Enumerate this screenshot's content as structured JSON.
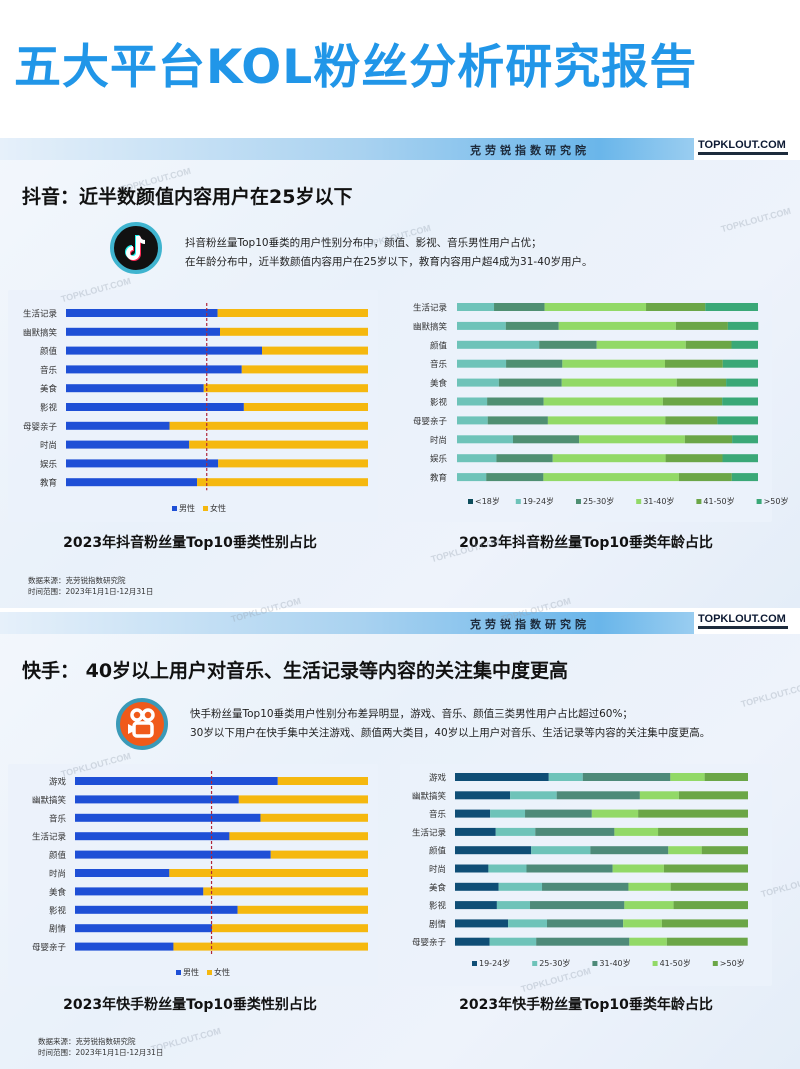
{
  "page_title": "五大平台KOL粉丝分析研究报告",
  "brand": {
    "org_name": "克劳锐指数研究院",
    "logo_text": "TOPKLOUT.COM",
    "watermark": "TOPKLOUT.COM"
  },
  "colors": {
    "title": "#2196e8",
    "male": "#1e4fd6",
    "female": "#f5b80f"
  },
  "sections": [
    {
      "heading": "抖音：近半数颜值内容用户在25岁以下",
      "icon": "tiktok-logo-icon",
      "desc_lines": [
        "抖音粉丝量Top10垂类的用户性别分布中，颜值、影视、音乐男性用户占优；",
        "在年龄分布中，近半数颜值内容用户在25岁以下，教育内容用户超4成为31-40岁用户。"
      ],
      "source": "数据来源：克劳锐指数研究院",
      "time_range": "时间范围：2023年1月1日-12月31日"
    },
    {
      "heading": "快手：  40岁以上用户对音乐、生活记录等内容的关注集中度更高",
      "icon": "kuaishou-logo-icon",
      "desc_lines": [
        "快手粉丝量Top10垂类用户性别分布差异明显，游戏、音乐、颜值三类男性用户占比超过60%；",
        "30岁以下用户在快手集中关注游戏、颜值两大类目，40岁以上用户对音乐、生活记录等内容的关注集中度更高。"
      ],
      "source": "数据来源：克劳锐指数研究院",
      "time_range": "时间范围：2023年1月1日-12月31日"
    }
  ],
  "chart_data": [
    {
      "type": "bar",
      "stacked": true,
      "orientation": "horizontal",
      "percent": true,
      "title": "2023年抖音粉丝量Top10垂类性别占比",
      "categories": [
        "生活记录",
        "幽默搞笑",
        "颜值",
        "音乐",
        "美食",
        "影视",
        "母婴亲子",
        "时尚",
        "娱乐",
        "教育"
      ],
      "series": [
        {
          "name": "男性",
          "color": "#1e4fd6",
          "values": [
            50.2,
            51.0,
            64.9,
            58.2,
            45.6,
            58.9,
            34.3,
            40.8,
            50.4,
            43.4
          ]
        },
        {
          "name": "女性",
          "color": "#f5b80f",
          "values": [
            49.8,
            49.0,
            35.1,
            41.8,
            54.4,
            41.1,
            65.7,
            59.2,
            49.6,
            56.6
          ]
        }
      ],
      "reference_line": 46.6,
      "xlim": [
        0,
        100
      ],
      "legend": "bottom",
      "grid": false
    },
    {
      "type": "bar",
      "stacked": true,
      "orientation": "horizontal",
      "percent": true,
      "title": "2023年抖音粉丝量Top10垂类年龄占比",
      "categories": [
        "生活记录",
        "幽默搞笑",
        "颜值",
        "音乐",
        "美食",
        "影视",
        "母婴亲子",
        "时尚",
        "娱乐",
        "教育"
      ],
      "series": [
        {
          "name": "<18岁",
          "color": "#0e4d5c",
          "values": [
            0,
            0,
            0,
            0,
            0,
            0,
            0,
            0,
            0,
            0
          ]
        },
        {
          "name": "19-24岁",
          "color": "#6ec3b9",
          "values": [
            12.3,
            16.2,
            27.3,
            16.3,
            13.9,
            10.0,
            10.2,
            18.6,
            13.1,
            9.7
          ]
        },
        {
          "name": "25-30岁",
          "color": "#4f8f72",
          "values": [
            16.8,
            17.6,
            19.1,
            18.7,
            20.9,
            18.8,
            20.0,
            22.0,
            18.7,
            19.0
          ]
        },
        {
          "name": "31-40岁",
          "color": "#92d967",
          "values": [
            33.7,
            38.9,
            29.6,
            34.1,
            38.2,
            39.6,
            39.0,
            35.1,
            37.5,
            45.0
          ]
        },
        {
          "name": "41-50岁",
          "color": "#6ba647",
          "values": [
            19.7,
            17.3,
            15.2,
            19.2,
            16.4,
            19.7,
            17.3,
            15.7,
            18.9,
            17.6
          ]
        },
        {
          "name": ">50岁",
          "color": "#3aa877",
          "values": [
            17.5,
            10.1,
            8.8,
            11.7,
            10.6,
            11.9,
            13.5,
            8.6,
            11.8,
            8.7
          ]
        }
      ],
      "xlim": [
        0,
        100
      ],
      "legend": "bottom",
      "grid": false
    },
    {
      "type": "bar",
      "stacked": true,
      "orientation": "horizontal",
      "percent": true,
      "title": "2023年快手粉丝量Top10垂类性别占比",
      "categories": [
        "游戏",
        "幽默搞笑",
        "音乐",
        "生活记录",
        "颜值",
        "时尚",
        "美食",
        "影视",
        "剧情",
        "母婴亲子"
      ],
      "series": [
        {
          "name": "男性",
          "color": "#1e4fd6",
          "values": [
            69.2,
            55.9,
            63.3,
            52.7,
            66.8,
            32.2,
            43.8,
            55.5,
            46.8,
            33.6
          ]
        },
        {
          "name": "女性",
          "color": "#f5b80f",
          "values": [
            30.8,
            44.1,
            36.7,
            47.3,
            33.2,
            67.8,
            56.2,
            44.5,
            53.2,
            66.4
          ]
        }
      ],
      "reference_line": 46.6,
      "xlim": [
        0,
        100
      ],
      "legend": "bottom",
      "grid": false
    },
    {
      "type": "bar",
      "stacked": true,
      "orientation": "horizontal",
      "percent": true,
      "title": "2023年快手粉丝量Top10垂类年龄占比",
      "categories": [
        "游戏",
        "幽默搞笑",
        "音乐",
        "生活记录",
        "颜值",
        "时尚",
        "美食",
        "影视",
        "剧情",
        "母婴亲子"
      ],
      "series": [
        {
          "name": "19-24岁",
          "color": "#0f4e76",
          "values": [
            32.0,
            18.8,
            12.0,
            13.9,
            26.0,
            11.4,
            14.9,
            14.3,
            18.1,
            11.8
          ]
        },
        {
          "name": "25-30岁",
          "color": "#6ec3b9",
          "values": [
            11.6,
            15.9,
            11.9,
            13.5,
            20.2,
            13.0,
            14.8,
            11.3,
            13.3,
            15.9
          ]
        },
        {
          "name": "31-40岁",
          "color": "#4e8a79",
          "values": [
            29.9,
            28.4,
            22.8,
            27.0,
            26.6,
            29.4,
            29.5,
            32.2,
            26.0,
            31.8
          ]
        },
        {
          "name": "41-50岁",
          "color": "#92d967",
          "values": [
            11.7,
            13.3,
            15.8,
            14.9,
            11.4,
            17.5,
            14.4,
            16.8,
            13.2,
            12.8
          ]
        },
        {
          "name": ">50岁",
          "color": "#6ba647",
          "values": [
            14.8,
            23.6,
            37.5,
            30.7,
            15.8,
            28.7,
            26.4,
            25.4,
            29.4,
            27.6
          ]
        }
      ],
      "xlim": [
        0,
        100
      ],
      "legend": "bottom",
      "grid": false
    }
  ]
}
